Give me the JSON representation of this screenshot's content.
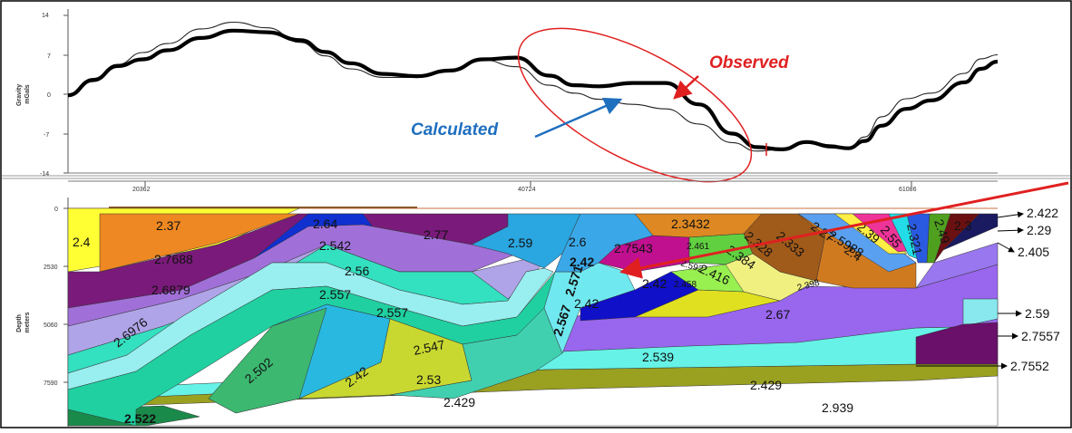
{
  "gravity_panel": {
    "ylabel": "Gravity\nmGals",
    "yticks": [
      "14",
      "7",
      "0",
      "-7",
      "-14"
    ],
    "annotations": {
      "observed": "Observed",
      "calculated": "Calculated"
    }
  },
  "depth_panel": {
    "ylabel": "Depth\nmeters",
    "yticks": [
      "0",
      "2530",
      "5060",
      "7590"
    ],
    "xticks": [
      "20362",
      "40724",
      "61086"
    ]
  },
  "density_labels": [
    "2.4",
    "2.37",
    "2.64",
    "2.77",
    "2.3432",
    "2.59",
    "2.6",
    "2.7543",
    "2.461",
    "2.592",
    "2.416",
    "2.384",
    "2.328",
    "2.333",
    "2.5988",
    "2.4",
    "2.27",
    "2.39",
    "2.55",
    "2.321",
    "2.49",
    "2.3",
    "2.7688",
    "2.542",
    "2.56",
    "2.6879",
    "2.557",
    "2.557",
    "2.6976",
    "2.42",
    "2.571",
    "2.42",
    "2.458",
    "2.42",
    "2.398",
    "2.67",
    "2.567",
    "2.547",
    "2.502",
    "2.42",
    "2.539",
    "2.53",
    "2.429",
    "2.429",
    "2.939",
    "2.522"
  ],
  "right_labels": [
    "2.422",
    "2.29",
    "2.405",
    "2.59",
    "2.7557",
    "2.7552"
  ],
  "chart_data": [
    {
      "type": "line",
      "title": "",
      "xlabel": "",
      "ylabel": "Gravity mGals",
      "ylim": [
        -14,
        14
      ],
      "xlim": [
        10000,
        66000
      ],
      "grid": false,
      "series": [
        {
          "name": "Observed",
          "x": [
            10000,
            11500,
            13000,
            14500,
            16000,
            18000,
            20000,
            22000,
            24000,
            25500,
            27000,
            29000,
            31000,
            33000,
            35000,
            37000,
            39000,
            40500,
            42000,
            44000,
            46000,
            48000,
            50000,
            51500,
            53000,
            54500,
            56000,
            57000,
            58000,
            59000,
            60500,
            62000,
            64000,
            65000,
            66000
          ],
          "y": [
            -0.2,
            2.5,
            5,
            6.2,
            7.8,
            10,
            11.3,
            11,
            9.6,
            7.5,
            5.5,
            3.6,
            3.2,
            4.2,
            6.2,
            6.5,
            3.3,
            1.6,
            1.4,
            2,
            2,
            -1.8,
            -7,
            -9.4,
            -9.8,
            -8.5,
            -9.3,
            -9.6,
            -8.3,
            -5.6,
            -2.6,
            -1.1,
            2.1,
            4.5,
            5.8
          ]
        },
        {
          "name": "Calculated",
          "x": [
            10000,
            11500,
            13000,
            14500,
            16000,
            18000,
            20000,
            22000,
            24000,
            25500,
            27000,
            29000,
            31000,
            33000,
            35000,
            37000,
            39000,
            40500,
            42000,
            44000,
            46000,
            48000,
            50000,
            51500,
            53000,
            54500,
            56000,
            57000,
            58000,
            59000,
            60500,
            62000,
            64000,
            65000,
            66000
          ],
          "y": [
            -0.2,
            2.8,
            5.3,
            7.4,
            9,
            11.6,
            12.8,
            11.8,
            9.2,
            6.8,
            4.5,
            3,
            3,
            4.4,
            6.1,
            4.9,
            1.6,
            0.2,
            -0.9,
            -1.8,
            -2.6,
            -5.3,
            -8.6,
            -10.1,
            -9.8,
            -8.4,
            -9,
            -9.6,
            -7.6,
            -4,
            -0.8,
            0.2,
            3.7,
            6.3,
            7
          ]
        }
      ]
    }
  ]
}
